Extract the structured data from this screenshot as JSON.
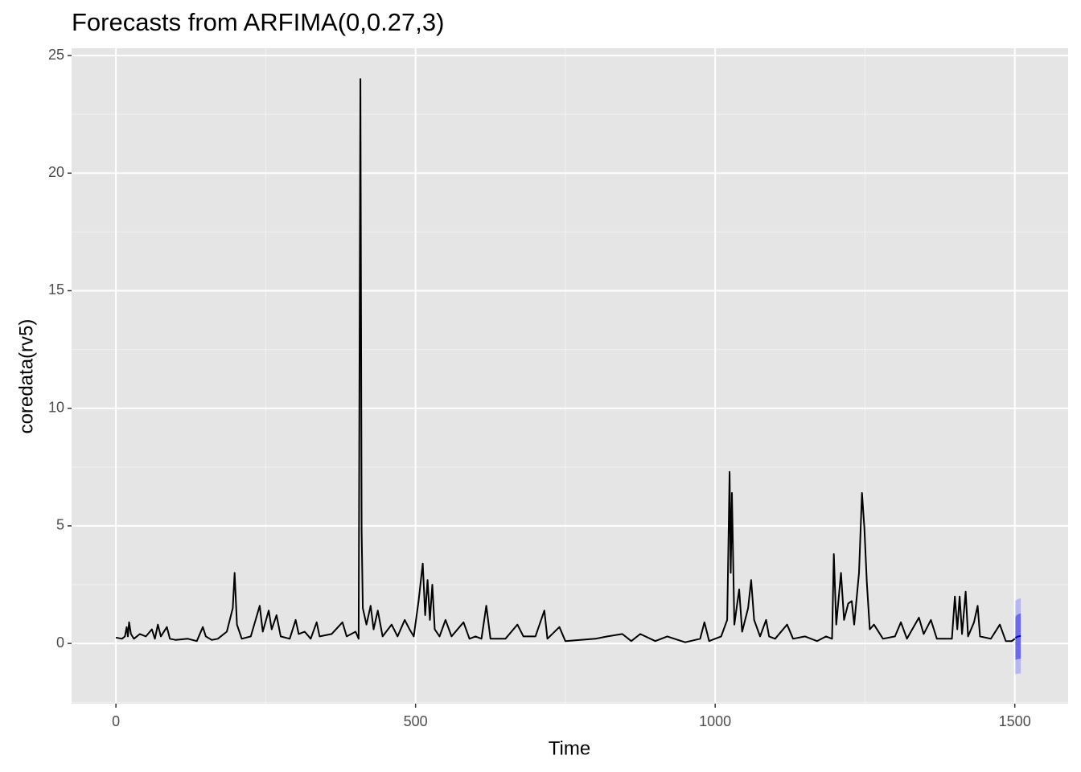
{
  "chart_data": {
    "type": "line",
    "title": "Forecasts from ARFIMA(0,0.27,3)",
    "x_label": "Time",
    "y_label": "coredata(rv5)",
    "xlim": [
      -74,
      1589
    ],
    "ylim": [
      -2.56,
      25.31
    ],
    "xticks": [
      0,
      500,
      1000,
      1500
    ],
    "yticks": [
      0,
      5,
      10,
      15,
      20,
      25
    ],
    "grid": true,
    "series": [
      {
        "color": "#000000",
        "x": [
          0,
          10,
          15,
          18,
          20,
          22,
          25,
          30,
          40,
          50,
          60,
          65,
          70,
          75,
          85,
          90,
          100,
          120,
          135,
          145,
          150,
          160,
          170,
          185,
          195,
          198,
          202,
          210,
          225,
          240,
          245,
          255,
          260,
          268,
          275,
          290,
          300,
          305,
          315,
          325,
          335,
          340,
          360,
          378,
          385,
          400,
          405,
          408,
          410,
          412,
          418,
          425,
          430,
          437,
          445,
          460,
          470,
          482,
          490,
          497,
          505,
          512,
          516,
          520,
          524,
          528,
          532,
          540,
          550,
          560,
          580,
          590,
          600,
          610,
          618,
          625,
          650,
          670,
          680,
          700,
          715,
          720,
          740,
          750,
          800,
          820,
          845,
          860,
          875,
          900,
          920,
          950,
          975,
          982,
          990,
          1010,
          1020,
          1024,
          1026,
          1028,
          1032,
          1040,
          1045,
          1055,
          1060,
          1065,
          1075,
          1085,
          1090,
          1100,
          1120,
          1130,
          1150,
          1170,
          1185,
          1195,
          1198,
          1202,
          1210,
          1215,
          1222,
          1228,
          1232,
          1240,
          1245,
          1249,
          1253,
          1258,
          1265,
          1280,
          1300,
          1310,
          1320,
          1340,
          1348,
          1360,
          1370,
          1395,
          1400,
          1404,
          1408,
          1412,
          1418,
          1422,
          1432,
          1438,
          1442,
          1460,
          1475,
          1485,
          1495,
          1500
        ],
        "values": [
          0.25,
          0.2,
          0.3,
          0.7,
          0.3,
          0.9,
          0.4,
          0.2,
          0.4,
          0.3,
          0.6,
          0.2,
          0.8,
          0.3,
          0.7,
          0.2,
          0.15,
          0.2,
          0.1,
          0.7,
          0.3,
          0.15,
          0.2,
          0.5,
          1.5,
          3.0,
          0.8,
          0.2,
          0.3,
          1.6,
          0.5,
          1.4,
          0.6,
          1.2,
          0.3,
          0.2,
          1.0,
          0.4,
          0.5,
          0.2,
          0.9,
          0.3,
          0.4,
          0.9,
          0.3,
          0.5,
          0.2,
          24,
          4.8,
          1.5,
          0.8,
          1.6,
          0.6,
          1.4,
          0.3,
          0.8,
          0.3,
          1.0,
          0.6,
          0.3,
          1.8,
          3.4,
          1.2,
          2.7,
          1.0,
          2.5,
          0.6,
          0.3,
          1.0,
          0.3,
          0.9,
          0.2,
          0.3,
          0.2,
          1.6,
          0.2,
          0.2,
          0.8,
          0.3,
          0.3,
          1.4,
          0.2,
          0.7,
          0.1,
          0.2,
          0.3,
          0.4,
          0.1,
          0.4,
          0.1,
          0.3,
          0.05,
          0.2,
          0.9,
          0.1,
          0.3,
          1.0,
          7.3,
          3.0,
          6.4,
          0.8,
          2.3,
          0.5,
          1.5,
          2.7,
          1.0,
          0.3,
          1.0,
          0.3,
          0.2,
          0.8,
          0.2,
          0.3,
          0.1,
          0.3,
          0.2,
          3.8,
          0.8,
          3.0,
          1.0,
          1.7,
          1.8,
          0.8,
          3.0,
          6.4,
          4.9,
          2.6,
          0.6,
          0.8,
          0.2,
          0.3,
          0.9,
          0.2,
          1.1,
          0.4,
          1.0,
          0.2,
          0.2,
          2.0,
          0.6,
          2.0,
          0.4,
          2.2,
          0.3,
          0.9,
          1.6,
          0.3,
          0.2,
          0.8,
          0.1,
          0.1,
          0.2
        ]
      }
    ],
    "forecast": {
      "x": [
        1501,
        1503,
        1506,
        1510
      ],
      "mean": [
        0.22,
        0.27,
        0.3,
        0.32
      ],
      "mean_color": "#0000cc",
      "lo80": [
        -0.7,
        -0.68,
        -0.66,
        -0.65
      ],
      "hi80": [
        1.1,
        1.2,
        1.25,
        1.28
      ],
      "color80": "#6b6be8",
      "lo95": [
        -1.3,
        -1.3,
        -1.28,
        -1.28
      ],
      "hi95": [
        1.8,
        1.85,
        1.9,
        1.92
      ],
      "color95": "#b6b6f3"
    }
  }
}
